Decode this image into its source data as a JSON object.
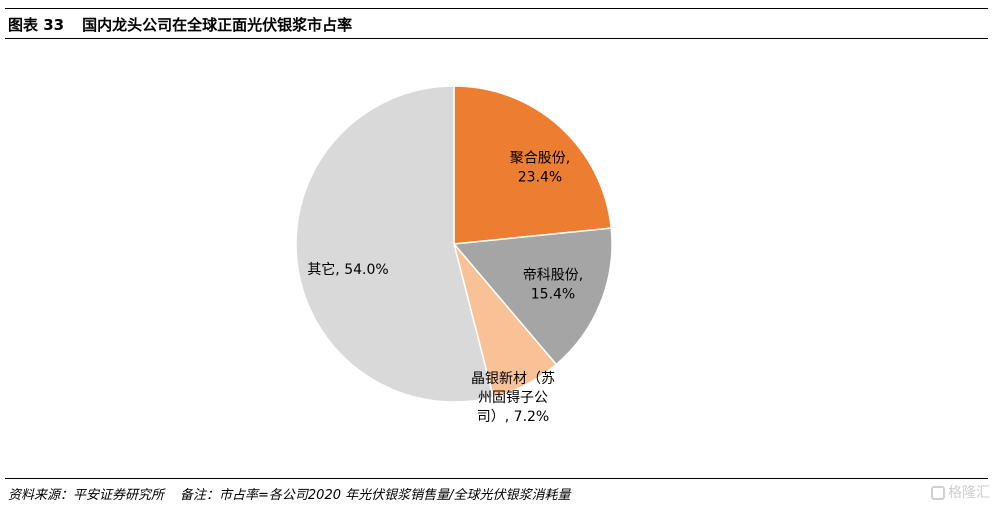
{
  "header": {
    "figure_label": "图表 33",
    "title": "国内龙头公司在全球正面光伏银浆市占率"
  },
  "chart_data": {
    "type": "pie",
    "title": "",
    "slices": [
      {
        "label_lines": [
          "聚合股份,",
          "23.4%"
        ],
        "value": 23.4,
        "color": "#ED7D31"
      },
      {
        "label_lines": [
          "帝科股份,",
          "15.4%"
        ],
        "value": 15.4,
        "color": "#A5A5A5"
      },
      {
        "label_lines": [
          "晶银新材（苏",
          "州固锝子公",
          "司）, 7.2%"
        ],
        "value": 7.2,
        "color": "#F8C196"
      },
      {
        "label_lines": [
          "其它, 54.0%"
        ],
        "value": 54.0,
        "color": "#D9D9D9"
      }
    ]
  },
  "footer": {
    "source": "资料来源：平安证券研究所",
    "note": "备注：市占率=各公司2020 年光伏银浆销售量/全球光伏银浆消耗量"
  },
  "watermark": {
    "text": "格隆汇",
    "icon": "logo-icon"
  }
}
